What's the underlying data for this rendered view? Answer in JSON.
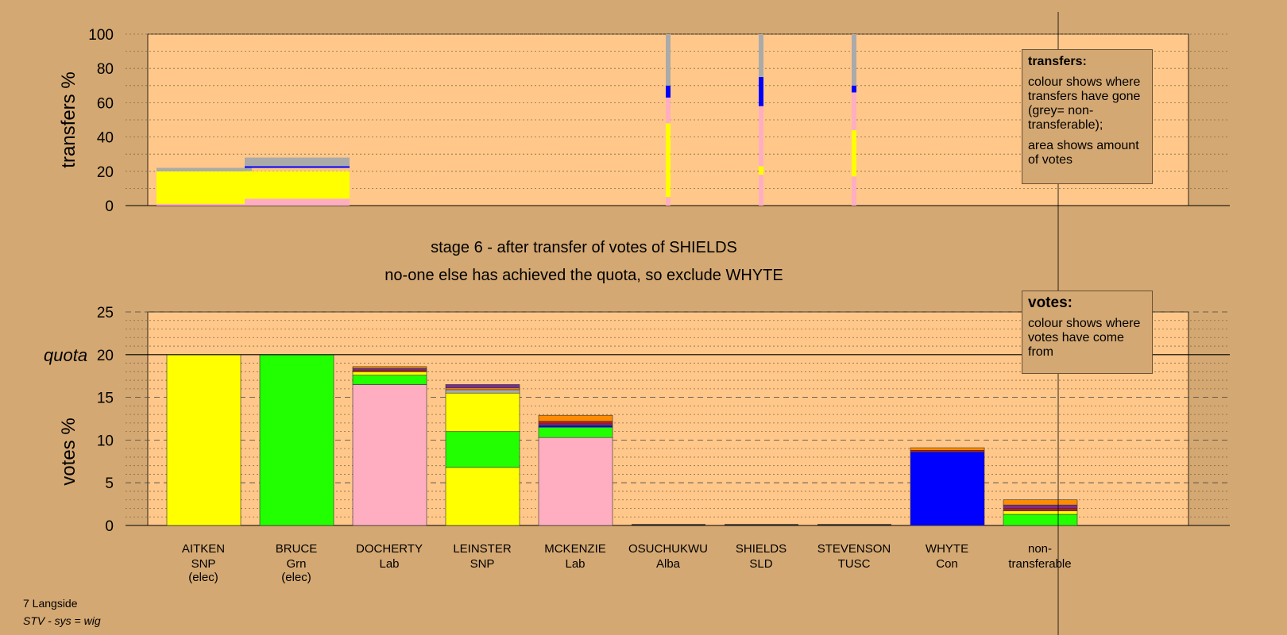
{
  "stage_title": "stage 6 - after transfer of votes of SHIELDS",
  "stage_subtitle": "no-one else has achieved the quota, so exclude WHYTE",
  "footer": {
    "ward": "7 Langside",
    "system": "STV - sys = wig"
  },
  "legend_transfers": {
    "heading": "transfers:",
    "line1": "colour shows where transfers have gone (grey= non-transferable);",
    "line2": "area shows amount of votes"
  },
  "legend_votes": {
    "heading": "votes:",
    "line1": "colour shows where votes have come from"
  },
  "colors": {
    "background": "#d4a872",
    "plot": "#ffc88a",
    "SNP": "#ffff00",
    "Grn": "#22ff00",
    "Lab": "#ffaec2",
    "Con": "#0000ff",
    "Alba": "#7a2e8a",
    "SLD": "#ff8c00",
    "TUSC": "#c01820",
    "nontransferable": "#aaaaaa"
  },
  "chart_data": [
    {
      "type": "bar",
      "name": "transfers",
      "ylabel": "transfers %",
      "ylim": [
        0,
        100
      ],
      "yticks": [
        0,
        20,
        40,
        60,
        80,
        100
      ],
      "segments_by_column": [
        {
          "col": 0,
          "segments": [
            {
              "c": "SNP",
              "from": 0,
              "to": 20
            },
            {
              "c": "Lab",
              "from": 0,
              "to": 1
            },
            {
              "c": "nontransferable",
              "from": 20,
              "to": 22
            }
          ]
        },
        {
          "col": 1,
          "segments": [
            {
              "c": "Lab",
              "from": 0,
              "to": 4
            },
            {
              "c": "SNP",
              "from": 4,
              "to": 20
            },
            {
              "c": "Con",
              "from": 22,
              "to": 23
            },
            {
              "c": "nontransferable",
              "from": 23,
              "to": 28
            }
          ]
        },
        {
          "col": 5,
          "segments": [
            {
              "c": "Lab",
              "from": 0,
              "to": 5
            },
            {
              "c": "SNP",
              "from": 5,
              "to": 48
            },
            {
              "c": "Lab",
              "from": 48,
              "to": 63
            },
            {
              "c": "Con",
              "from": 63,
              "to": 70
            },
            {
              "c": "nontransferable",
              "from": 70,
              "to": 100
            }
          ]
        },
        {
          "col": 6,
          "segments": [
            {
              "c": "Lab",
              "from": 0,
              "to": 18
            },
            {
              "c": "SNP",
              "from": 18,
              "to": 23
            },
            {
              "c": "Lab",
              "from": 23,
              "to": 58
            },
            {
              "c": "Con",
              "from": 58,
              "to": 75
            },
            {
              "c": "nontransferable",
              "from": 75,
              "to": 100
            }
          ]
        },
        {
          "col": 7,
          "segments": [
            {
              "c": "Lab",
              "from": 0,
              "to": 17
            },
            {
              "c": "SNP",
              "from": 17,
              "to": 44
            },
            {
              "c": "Lab",
              "from": 44,
              "to": 66
            },
            {
              "c": "Con",
              "from": 66,
              "to": 70
            },
            {
              "c": "nontransferable",
              "from": 70,
              "to": 100
            }
          ]
        }
      ]
    },
    {
      "type": "bar",
      "name": "votes",
      "ylabel": "votes %",
      "ylim": [
        0,
        25
      ],
      "yticks": [
        0,
        5,
        10,
        15,
        20,
        25
      ],
      "quota": 20,
      "quota_label": "quota",
      "categories": [
        {
          "name": "AITKEN",
          "party": "SNP",
          "note": "(elec)"
        },
        {
          "name": "BRUCE",
          "party": "Grn",
          "note": "(elec)"
        },
        {
          "name": "DOCHERTY",
          "party": "Lab",
          "note": ""
        },
        {
          "name": "LEINSTER",
          "party": "SNP",
          "note": ""
        },
        {
          "name": "MCKENZIE",
          "party": "Lab",
          "note": ""
        },
        {
          "name": "OSUCHUKWU",
          "party": "Alba",
          "note": ""
        },
        {
          "name": "SHIELDS",
          "party": "SLD",
          "note": ""
        },
        {
          "name": "STEVENSON",
          "party": "TUSC",
          "note": ""
        },
        {
          "name": "WHYTE",
          "party": "Con",
          "note": ""
        },
        {
          "name": "non-",
          "party": "transferable",
          "note": ""
        }
      ],
      "stacks": [
        [
          {
            "c": "SNP",
            "v": 20.0
          }
        ],
        [
          {
            "c": "Grn",
            "v": 20.0
          }
        ],
        [
          {
            "c": "Lab",
            "v": 16.5
          },
          {
            "c": "Grn",
            "v": 1.1
          },
          {
            "c": "SNP",
            "v": 0.4
          },
          {
            "c": "TUSC",
            "v": 0.2
          },
          {
            "c": "Alba",
            "v": 0.2
          },
          {
            "c": "SLD",
            "v": 0.2
          }
        ],
        [
          {
            "c": "SNP",
            "v": 6.8
          },
          {
            "c": "Grn",
            "v": 4.2
          },
          {
            "c": "SNP",
            "v": 4.5
          },
          {
            "c": "nontransferable",
            "v": 0.4
          },
          {
            "c": "SLD",
            "v": 0.2
          },
          {
            "c": "Alba",
            "v": 0.4
          }
        ],
        [
          {
            "c": "Lab",
            "v": 10.3
          },
          {
            "c": "Grn",
            "v": 1.2
          },
          {
            "c": "Con",
            "v": 0.2
          },
          {
            "c": "Alba",
            "v": 0.2
          },
          {
            "c": "TUSC",
            "v": 0.3
          },
          {
            "c": "SLD",
            "v": 0.7
          }
        ],
        [],
        [],
        [],
        [
          {
            "c": "Con",
            "v": 8.6
          },
          {
            "c": "TUSC",
            "v": 0.2
          },
          {
            "c": "SLD",
            "v": 0.3
          }
        ],
        [
          {
            "c": "Grn",
            "v": 1.3
          },
          {
            "c": "SNP",
            "v": 0.4
          },
          {
            "c": "TUSC",
            "v": 0.3
          },
          {
            "c": "Alba",
            "v": 0.4
          },
          {
            "c": "SLD",
            "v": 0.6
          }
        ]
      ]
    }
  ]
}
